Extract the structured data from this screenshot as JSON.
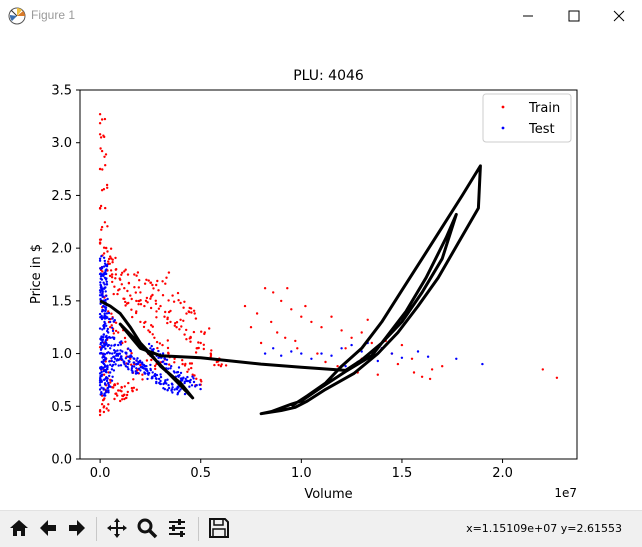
{
  "window": {
    "title": "Figure 1"
  },
  "toolbar": {
    "coords": "x=1.15109e+07  y=2.61553",
    "buttons": [
      "home",
      "back",
      "forward",
      "pan",
      "zoom",
      "configure-subplots",
      "save"
    ]
  },
  "chart_data": {
    "type": "scatter",
    "title": "PLU: 4046",
    "xlabel": "Volume",
    "ylabel": "Price in $",
    "offset_text": "1e7",
    "xlim": [
      -0.1,
      2.37
    ],
    "ylim": [
      0.0,
      3.5
    ],
    "x_scale_note": "x values in units of 1e7",
    "x_ticks": [
      "0.0",
      "0.5",
      "1.0",
      "1.5",
      "2.0"
    ],
    "y_ticks": [
      "0.0",
      "0.5",
      "1.0",
      "1.5",
      "2.0",
      "2.5",
      "3.0",
      "3.5"
    ],
    "legend": {
      "position": "top-right",
      "entries": [
        "Train",
        "Test"
      ]
    },
    "series": [
      {
        "name": "Train",
        "color": "#ff0000",
        "kind": "scatter"
      },
      {
        "name": "Test",
        "color": "#0000ff",
        "kind": "scatter"
      },
      {
        "name": "fit",
        "color": "#000000",
        "kind": "line"
      }
    ],
    "train_dense": [
      [
        0.01,
        3.22
      ],
      [
        0.005,
        3.05
      ],
      [
        0.01,
        2.92
      ],
      [
        0.0,
        2.75
      ],
      [
        0.01,
        2.55
      ],
      [
        0.005,
        2.4
      ],
      [
        0.01,
        2.2
      ],
      [
        0.0,
        2.08
      ],
      [
        0.02,
        1.95
      ],
      [
        0.01,
        1.82
      ],
      [
        0.03,
        2.0
      ],
      [
        0.04,
        1.85
      ],
      [
        0.05,
        1.92
      ],
      [
        0.06,
        1.75
      ],
      [
        0.08,
        1.8
      ],
      [
        0.1,
        1.7
      ],
      [
        0.12,
        1.62
      ],
      [
        0.15,
        1.55
      ],
      [
        0.18,
        1.5
      ],
      [
        0.2,
        1.58
      ],
      [
        0.22,
        1.45
      ],
      [
        0.25,
        1.52
      ],
      [
        0.28,
        1.4
      ],
      [
        0.3,
        1.45
      ],
      [
        0.32,
        1.35
      ],
      [
        0.35,
        1.3
      ],
      [
        0.38,
        1.25
      ],
      [
        0.4,
        1.32
      ],
      [
        0.42,
        1.18
      ],
      [
        0.45,
        1.15
      ],
      [
        0.48,
        1.05
      ],
      [
        0.5,
        1.1
      ],
      [
        0.07,
        1.3
      ],
      [
        0.09,
        1.2
      ],
      [
        0.11,
        1.1
      ],
      [
        0.13,
        1.0
      ],
      [
        0.15,
        0.95
      ],
      [
        0.17,
        0.9
      ],
      [
        0.19,
        0.85
      ],
      [
        0.21,
        0.8
      ],
      [
        0.05,
        0.75
      ],
      [
        0.07,
        0.7
      ],
      [
        0.09,
        0.65
      ],
      [
        0.11,
        0.6
      ],
      [
        0.13,
        0.58
      ],
      [
        0.1,
        0.55
      ],
      [
        0.08,
        0.62
      ],
      [
        0.06,
        0.68
      ],
      [
        0.14,
        0.72
      ],
      [
        0.16,
        0.65
      ],
      [
        0.23,
        1.7
      ],
      [
        0.26,
        1.65
      ],
      [
        0.29,
        1.6
      ],
      [
        0.33,
        1.72
      ],
      [
        0.36,
        1.55
      ],
      [
        0.4,
        1.48
      ],
      [
        0.44,
        1.4
      ],
      [
        0.47,
        1.38
      ],
      [
        0.12,
        1.78
      ],
      [
        0.17,
        1.75
      ],
      [
        0.2,
        1.3
      ],
      [
        0.24,
        1.22
      ],
      [
        0.27,
        1.15
      ],
      [
        0.31,
        1.08
      ],
      [
        0.34,
        1.0
      ],
      [
        0.37,
        0.95
      ],
      [
        0.41,
        0.9
      ],
      [
        0.44,
        0.85
      ],
      [
        0.46,
        0.8
      ],
      [
        0.5,
        0.75
      ],
      [
        0.03,
        1.55
      ],
      [
        0.04,
        1.4
      ],
      [
        0.05,
        1.25
      ],
      [
        0.02,
        1.1
      ],
      [
        0.03,
        0.95
      ],
      [
        0.02,
        0.8
      ],
      [
        0.01,
        0.6
      ],
      [
        0.02,
        0.5
      ],
      [
        0.0,
        0.45
      ],
      [
        0.01,
        0.52
      ],
      [
        0.52,
        1.2
      ],
      [
        0.55,
        1.0
      ],
      [
        0.58,
        0.92
      ],
      [
        0.6,
        0.88
      ],
      [
        0.25,
        0.98
      ],
      [
        0.28,
        0.9
      ],
      [
        0.18,
        1.4
      ],
      [
        0.14,
        1.48
      ],
      [
        0.09,
        1.6
      ],
      [
        0.06,
        1.68
      ]
    ],
    "train_sparse": [
      [
        0.72,
        1.45
      ],
      [
        0.78,
        1.38
      ],
      [
        0.82,
        1.62
      ],
      [
        0.86,
        1.58
      ],
      [
        0.9,
        1.5
      ],
      [
        0.95,
        1.42
      ],
      [
        1.0,
        1.35
      ],
      [
        1.05,
        1.3
      ],
      [
        1.1,
        1.25
      ],
      [
        1.15,
        1.35
      ],
      [
        1.2,
        1.22
      ],
      [
        1.25,
        1.15
      ],
      [
        1.3,
        1.2
      ],
      [
        1.35,
        1.1
      ],
      [
        1.4,
        1.05
      ],
      [
        1.45,
        1.0
      ],
      [
        1.5,
        1.08
      ],
      [
        1.55,
        0.95
      ],
      [
        0.88,
        1.2
      ],
      [
        0.92,
        1.15
      ],
      [
        0.98,
        1.05
      ],
      [
        1.08,
        1.0
      ],
      [
        1.12,
        0.92
      ],
      [
        1.18,
        0.88
      ],
      [
        1.28,
        0.82
      ],
      [
        1.38,
        0.8
      ],
      [
        1.6,
        0.78
      ],
      [
        1.65,
        0.85
      ],
      [
        1.3,
        0.95
      ],
      [
        1.22,
        1.05
      ],
      [
        0.75,
        1.25
      ],
      [
        0.8,
        1.1
      ],
      [
        0.85,
        1.3
      ],
      [
        0.93,
        1.62
      ],
      [
        1.02,
        1.45
      ],
      [
        1.33,
        1.32
      ],
      [
        1.42,
        1.12
      ],
      [
        1.48,
        0.9
      ],
      [
        1.64,
        0.76
      ],
      [
        2.2,
        0.85
      ],
      [
        2.27,
        0.77
      ],
      [
        1.1,
        0.68
      ],
      [
        1.56,
        0.82
      ],
      [
        1.7,
        0.88
      ],
      [
        0.97,
        1.12
      ]
    ],
    "test_dense": [
      [
        0.0,
        1.9
      ],
      [
        0.01,
        1.75
      ],
      [
        0.0,
        1.6
      ],
      [
        0.02,
        1.5
      ],
      [
        0.01,
        1.4
      ],
      [
        0.03,
        1.35
      ],
      [
        0.02,
        1.25
      ],
      [
        0.04,
        1.2
      ],
      [
        0.03,
        1.1
      ],
      [
        0.05,
        1.05
      ],
      [
        0.06,
        1.0
      ],
      [
        0.08,
        0.98
      ],
      [
        0.1,
        0.95
      ],
      [
        0.12,
        0.92
      ],
      [
        0.14,
        0.9
      ],
      [
        0.16,
        0.88
      ],
      [
        0.18,
        0.86
      ],
      [
        0.2,
        0.84
      ],
      [
        0.22,
        0.82
      ],
      [
        0.24,
        0.8
      ],
      [
        0.26,
        0.78
      ],
      [
        0.28,
        0.76
      ],
      [
        0.3,
        0.74
      ],
      [
        0.32,
        0.72
      ],
      [
        0.34,
        0.7
      ],
      [
        0.36,
        0.68
      ],
      [
        0.38,
        0.67
      ],
      [
        0.4,
        0.66
      ],
      [
        0.42,
        0.72
      ],
      [
        0.45,
        0.75
      ],
      [
        0.05,
        1.3
      ],
      [
        0.07,
        1.15
      ],
      [
        0.09,
        1.08
      ],
      [
        0.11,
        1.02
      ],
      [
        0.13,
        1.0
      ],
      [
        0.15,
        0.97
      ],
      [
        0.17,
        0.95
      ],
      [
        0.19,
        0.92
      ],
      [
        0.21,
        0.9
      ],
      [
        0.23,
        0.88
      ],
      [
        0.01,
        1.0
      ],
      [
        0.02,
        0.9
      ],
      [
        0.01,
        0.8
      ],
      [
        0.02,
        0.75
      ],
      [
        0.0,
        0.7
      ],
      [
        0.03,
        0.65
      ],
      [
        0.04,
        0.72
      ],
      [
        0.05,
        0.82
      ],
      [
        0.06,
        0.88
      ],
      [
        0.07,
        0.92
      ],
      [
        0.25,
        1.05
      ],
      [
        0.27,
        1.0
      ],
      [
        0.29,
        0.96
      ],
      [
        0.31,
        0.92
      ],
      [
        0.33,
        0.9
      ],
      [
        0.35,
        0.86
      ],
      [
        0.37,
        0.82
      ],
      [
        0.39,
        0.78
      ],
      [
        0.41,
        0.76
      ],
      [
        0.48,
        0.7
      ]
    ],
    "test_sparse": [
      [
        0.82,
        1.0
      ],
      [
        0.86,
        1.05
      ],
      [
        0.9,
        0.98
      ],
      [
        0.95,
        1.02
      ],
      [
        1.0,
        1.0
      ],
      [
        1.05,
        0.95
      ],
      [
        1.1,
        1.0
      ],
      [
        1.15,
        0.98
      ],
      [
        1.2,
        1.05
      ],
      [
        1.25,
        1.08
      ],
      [
        1.3,
        1.02
      ],
      [
        1.35,
        0.98
      ],
      [
        1.4,
        1.05
      ],
      [
        1.45,
        1.0
      ],
      [
        1.5,
        0.96
      ],
      [
        1.58,
        1.02
      ],
      [
        1.63,
        0.97
      ],
      [
        1.77,
        0.95
      ],
      [
        1.9,
        0.9
      ],
      [
        1.28,
        0.92
      ],
      [
        1.22,
        0.88
      ],
      [
        1.33,
        1.1
      ],
      [
        1.38,
        0.93
      ]
    ],
    "fit_line": [
      [
        0.0,
        1.5
      ],
      [
        0.05,
        1.45
      ],
      [
        0.1,
        1.38
      ],
      [
        0.15,
        1.25
      ],
      [
        0.2,
        1.1
      ],
      [
        0.25,
        1.0
      ],
      [
        0.3,
        0.88
      ],
      [
        0.35,
        0.8
      ],
      [
        0.4,
        0.72
      ],
      [
        0.46,
        0.58
      ],
      [
        0.1,
        1.28
      ],
      [
        0.2,
        1.05
      ],
      [
        0.3,
        0.98
      ],
      [
        0.5,
        0.96
      ],
      [
        0.8,
        0.9
      ],
      [
        1.0,
        0.87
      ],
      [
        1.22,
        0.84
      ],
      [
        1.3,
        0.94
      ],
      [
        1.4,
        1.1
      ],
      [
        1.5,
        1.3
      ],
      [
        1.6,
        1.58
      ],
      [
        1.7,
        1.9
      ],
      [
        1.77,
        2.32
      ],
      [
        1.72,
        2.1
      ],
      [
        1.62,
        1.72
      ],
      [
        1.52,
        1.4
      ],
      [
        1.42,
        1.15
      ],
      [
        1.35,
        0.98
      ],
      [
        1.22,
        0.83
      ],
      [
        1.1,
        0.68
      ],
      [
        1.0,
        0.55
      ],
      [
        0.95,
        0.52
      ],
      [
        0.85,
        0.45
      ],
      [
        0.8,
        0.43
      ],
      [
        0.9,
        0.46
      ],
      [
        0.97,
        0.49
      ],
      [
        1.03,
        0.55
      ],
      [
        1.12,
        0.66
      ],
      [
        1.26,
        0.81
      ],
      [
        1.38,
        1.0
      ],
      [
        1.48,
        1.2
      ],
      [
        1.58,
        1.45
      ],
      [
        1.68,
        1.72
      ],
      [
        1.78,
        2.05
      ],
      [
        1.88,
        2.38
      ],
      [
        1.89,
        2.78
      ],
      [
        1.8,
        2.5
      ],
      [
        1.7,
        2.2
      ],
      [
        1.6,
        1.9
      ],
      [
        1.5,
        1.6
      ],
      [
        1.4,
        1.3
      ],
      [
        1.3,
        1.05
      ],
      [
        1.2,
        0.88
      ],
      [
        1.12,
        0.72
      ],
      [
        1.03,
        0.6
      ],
      [
        0.95,
        0.5
      ]
    ]
  }
}
